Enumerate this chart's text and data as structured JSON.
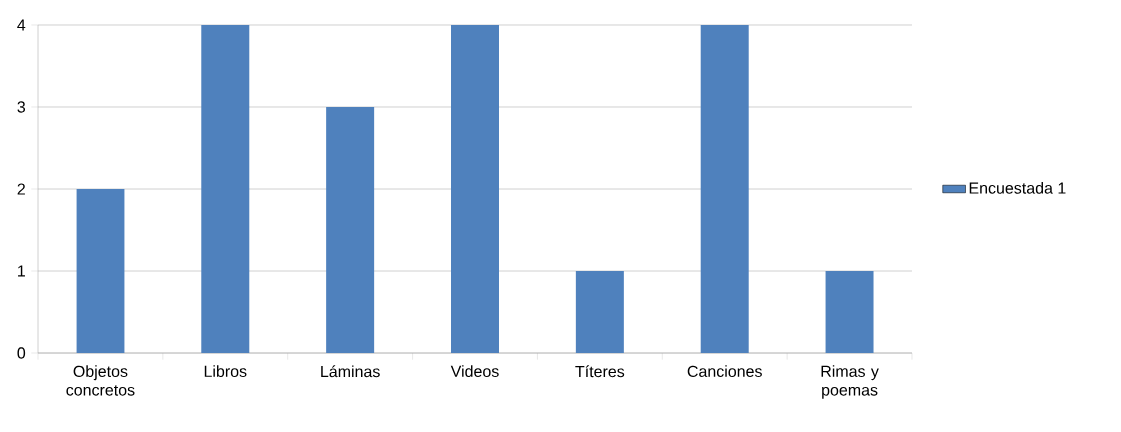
{
  "chart_data": {
    "type": "bar",
    "categories": [
      "Objetos concretos",
      "Libros",
      "Láminas",
      "Videos",
      "Títeres",
      "Canciones",
      "Rimas y poemas"
    ],
    "series": [
      {
        "name": "Encuestada 1",
        "color": "#4f81bd",
        "values": [
          2,
          4,
          3,
          4,
          1,
          4,
          1
        ]
      }
    ],
    "ylim": [
      0,
      4
    ],
    "yticks": [
      0,
      1,
      2,
      3,
      4
    ],
    "grid": "y",
    "legend": "right"
  }
}
